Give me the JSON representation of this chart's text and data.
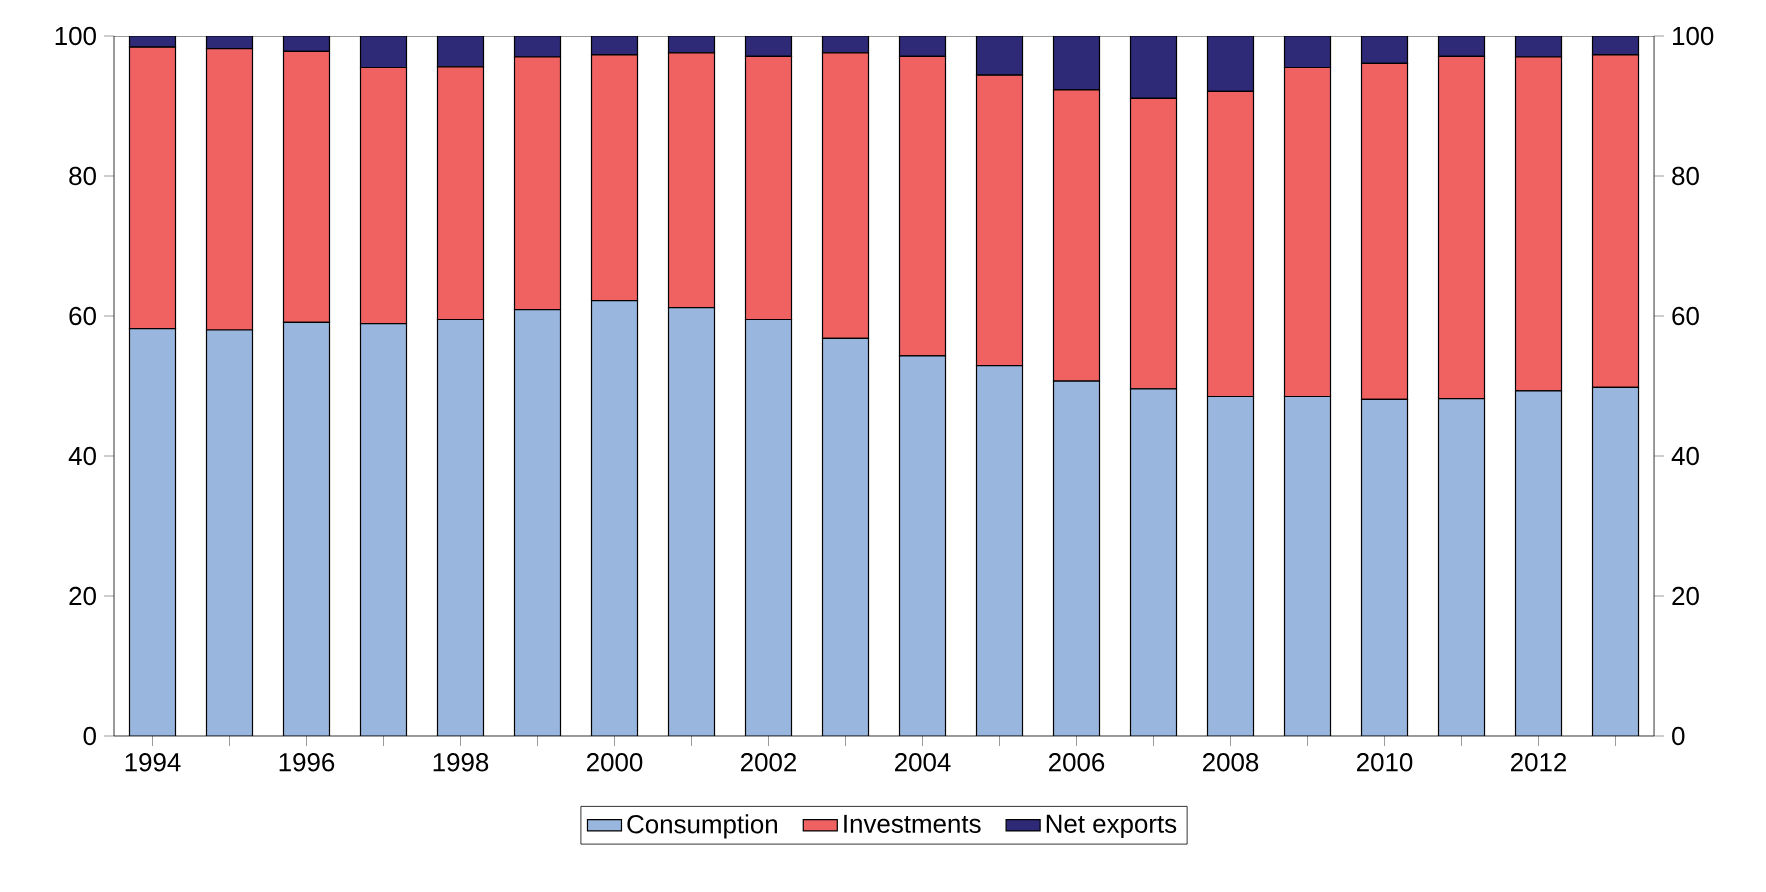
{
  "chart_data": {
    "type": "bar",
    "stacked": true,
    "categories": [
      "1994",
      null,
      "1996",
      null,
      "1998",
      null,
      "2000",
      null,
      "2002",
      null,
      "2004",
      null,
      "2006",
      null,
      "2008",
      null,
      "2010",
      null,
      "2012",
      null
    ],
    "series": [
      {
        "name": "Consumption",
        "color": "#99b7de",
        "values": [
          58.2,
          58.0,
          59.1,
          58.9,
          59.5,
          60.9,
          62.2,
          61.2,
          59.5,
          56.8,
          54.3,
          52.9,
          50.7,
          49.6,
          48.5,
          48.5,
          48.1,
          48.2,
          49.3,
          49.8
        ]
      },
      {
        "name": "Investments",
        "color": "#f06262",
        "values": [
          40.2,
          40.2,
          38.7,
          36.6,
          36.1,
          36.1,
          35.1,
          36.4,
          37.6,
          40.8,
          42.8,
          41.5,
          41.6,
          41.5,
          43.6,
          47.0,
          48.0,
          48.9,
          47.7,
          47.5
        ]
      },
      {
        "name": "Net exports",
        "color": "#2e2a77",
        "values": [
          1.6,
          1.8,
          2.2,
          4.5,
          4.4,
          3.0,
          2.7,
          2.4,
          2.9,
          2.4,
          2.9,
          5.6,
          7.7,
          8.9,
          7.9,
          4.5,
          3.9,
          2.9,
          3.0,
          2.7
        ]
      }
    ],
    "ylim": [
      0,
      100
    ],
    "yticks": [
      0,
      20,
      40,
      60,
      80,
      100
    ],
    "y2lim": [
      0,
      100
    ],
    "y2ticks": [
      0,
      20,
      40,
      60,
      80,
      100
    ],
    "grid": false,
    "legend": "bottom"
  }
}
